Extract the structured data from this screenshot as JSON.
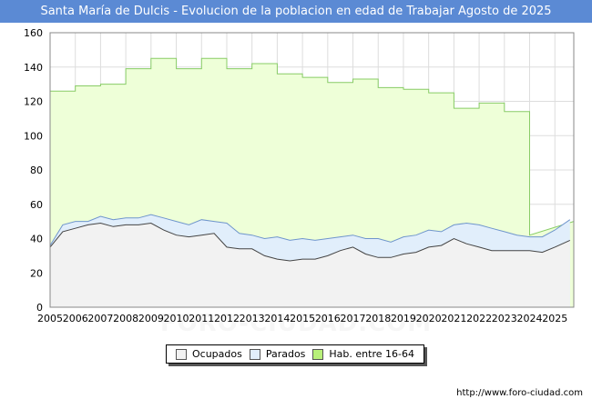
{
  "title": "Santa María de Dulcis - Evolucion de la poblacion en edad de Trabajar Agosto de 2025",
  "footer_url": "http://www.foro-ciudad.com",
  "watermark": "FORO-CIUDAD.COM",
  "colors": {
    "title_bg": "#5b8ad4",
    "hab_fill": "#eeffd8",
    "hab_line": "#88cc66",
    "parados_fill": "#e1eefb",
    "parados_line": "#6f95cc",
    "ocupados_fill": "#f2f2f2",
    "ocupados_line": "#444444",
    "grid": "#dddddd"
  },
  "chart_data": {
    "type": "area",
    "ylim": [
      0,
      160
    ],
    "xlim": [
      2005,
      2025.75
    ],
    "y_ticks": [
      "0",
      "20",
      "40",
      "60",
      "80",
      "100",
      "120",
      "140",
      "160"
    ],
    "x_ticks": [
      "2005",
      "2006",
      "2007",
      "2008",
      "2009",
      "2010",
      "2011",
      "2012",
      "2013",
      "2014",
      "2015",
      "2016",
      "2017",
      "2018",
      "2019",
      "2020",
      "2021",
      "2022",
      "2023",
      "2024",
      "2025"
    ],
    "grid": true,
    "legend_position": "bottom-center",
    "series": [
      {
        "name": "Hab. entre 16-64",
        "key": "hab",
        "x": [
          2005,
          2006,
          2007,
          2008,
          2009,
          2010,
          2011,
          2012,
          2013,
          2014,
          2015,
          2016,
          2017,
          2018,
          2019,
          2020,
          2021,
          2022,
          2023,
          2024
        ],
        "values": [
          126,
          129,
          130,
          139,
          145,
          139,
          145,
          139,
          142,
          136,
          134,
          131,
          133,
          128,
          127,
          125,
          116,
          119,
          114,
          42
        ]
      },
      {
        "name": "Parados",
        "key": "parados",
        "x": [
          2005,
          2005.5,
          2006,
          2006.5,
          2007,
          2007.5,
          2008,
          2008.5,
          2009,
          2009.5,
          2010,
          2010.5,
          2011,
          2011.5,
          2012,
          2012.5,
          2013,
          2013.5,
          2014,
          2014.5,
          2015,
          2015.5,
          2016,
          2016.5,
          2017,
          2017.5,
          2018,
          2018.5,
          2019,
          2019.5,
          2020,
          2020.5,
          2021,
          2021.5,
          2022,
          2022.5,
          2023,
          2023.5,
          2024,
          2024.5,
          2025,
          2025.6
        ],
        "values": [
          36,
          48,
          50,
          50,
          53,
          51,
          52,
          52,
          54,
          52,
          50,
          48,
          51,
          50,
          49,
          43,
          42,
          40,
          41,
          39,
          40,
          39,
          40,
          41,
          42,
          40,
          40,
          38,
          41,
          42,
          45,
          44,
          48,
          49,
          48,
          46,
          44,
          42,
          41,
          41,
          45,
          51
        ]
      },
      {
        "name": "Ocupados",
        "key": "ocupados",
        "x": [
          2005,
          2005.5,
          2006,
          2006.5,
          2007,
          2007.5,
          2008,
          2008.5,
          2009,
          2009.5,
          2010,
          2010.5,
          2011,
          2011.5,
          2012,
          2012.5,
          2013,
          2013.5,
          2014,
          2014.5,
          2015,
          2015.5,
          2016,
          2016.5,
          2017,
          2017.5,
          2018,
          2018.5,
          2019,
          2019.5,
          2020,
          2020.5,
          2021,
          2021.5,
          2022,
          2022.5,
          2023,
          2023.5,
          2024,
          2024.5,
          2025,
          2025.6
        ],
        "values": [
          35,
          44,
          46,
          48,
          49,
          47,
          48,
          48,
          49,
          45,
          42,
          41,
          42,
          43,
          35,
          34,
          34,
          30,
          28,
          27,
          28,
          28,
          30,
          33,
          35,
          31,
          29,
          29,
          31,
          32,
          35,
          36,
          40,
          37,
          35,
          33,
          33,
          33,
          33,
          32,
          35,
          39
        ]
      }
    ]
  },
  "legend": [
    {
      "label": "Ocupados",
      "key": "ocupados"
    },
    {
      "label": "Parados",
      "key": "parados"
    },
    {
      "label": "Hab. entre 16-64",
      "key": "hab"
    }
  ]
}
